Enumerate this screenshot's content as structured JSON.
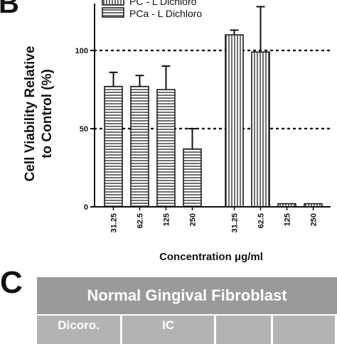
{
  "panels": {
    "b": "B",
    "c": "C"
  },
  "chart_data": {
    "type": "bar",
    "ylabel_line1": "Cell Viability Relative",
    "ylabel_line2": "to Control (%)",
    "xlabel": "Concentration μg/ml",
    "ylim": [
      0,
      130
    ],
    "yticks": [
      "0",
      "50",
      "100"
    ],
    "reference_lines": [
      50,
      100
    ],
    "series": [
      {
        "name": "PC - L Dichloro",
        "pattern": "vertical",
        "categories": [
          "31.25",
          "62.5",
          "125",
          "250"
        ],
        "values": [
          110,
          99,
          2,
          2
        ],
        "errors": [
          3,
          29,
          0,
          0
        ]
      },
      {
        "name": "PCa - L Dichloro",
        "pattern": "horizontal",
        "categories": [
          "31.25",
          "62.5",
          "125",
          "250"
        ],
        "values": [
          77,
          77,
          75,
          37
        ],
        "errors": [
          9,
          7,
          15,
          13
        ]
      }
    ],
    "plot_order": [
      "PCa - L Dichloro",
      "PC - L Dichloro"
    ]
  },
  "table": {
    "title": "Normal Gingival Fibroblast",
    "row": [
      "Dicoro.",
      "IC",
      "",
      ""
    ]
  }
}
